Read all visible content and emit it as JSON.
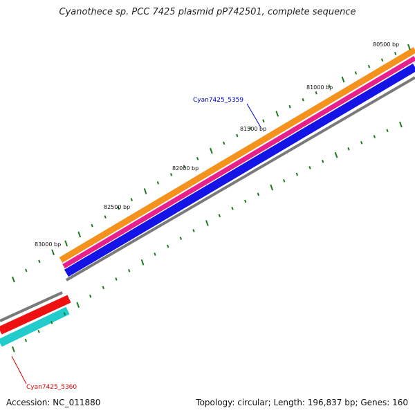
{
  "title": "Cyanothece sp. PCC 7425 plasmid pP742501, complete sequence",
  "footer": {
    "accession": "Accession: NC_011880",
    "summary": "Topology: circular; Length: 196,837 bp; Genes: 160"
  },
  "colors": {
    "orange": "#f5921e",
    "magenta": "#e8208c",
    "blue": "#1414e6",
    "gray": "#7a7a7a",
    "red": "#ee1111",
    "cyan": "#22cccc",
    "tick": "#1d7a1d",
    "label_blue": "#0000cc",
    "label_red": "#dd0000"
  },
  "ruler_labels": [
    "80500 bp",
    "81000 bp",
    "81500 bp",
    "82000 bp",
    "82500 bp",
    "83000 bp"
  ],
  "gene_labels": {
    "upper": "Cyan7425_5359",
    "lower": "Cyan7425_5360"
  }
}
